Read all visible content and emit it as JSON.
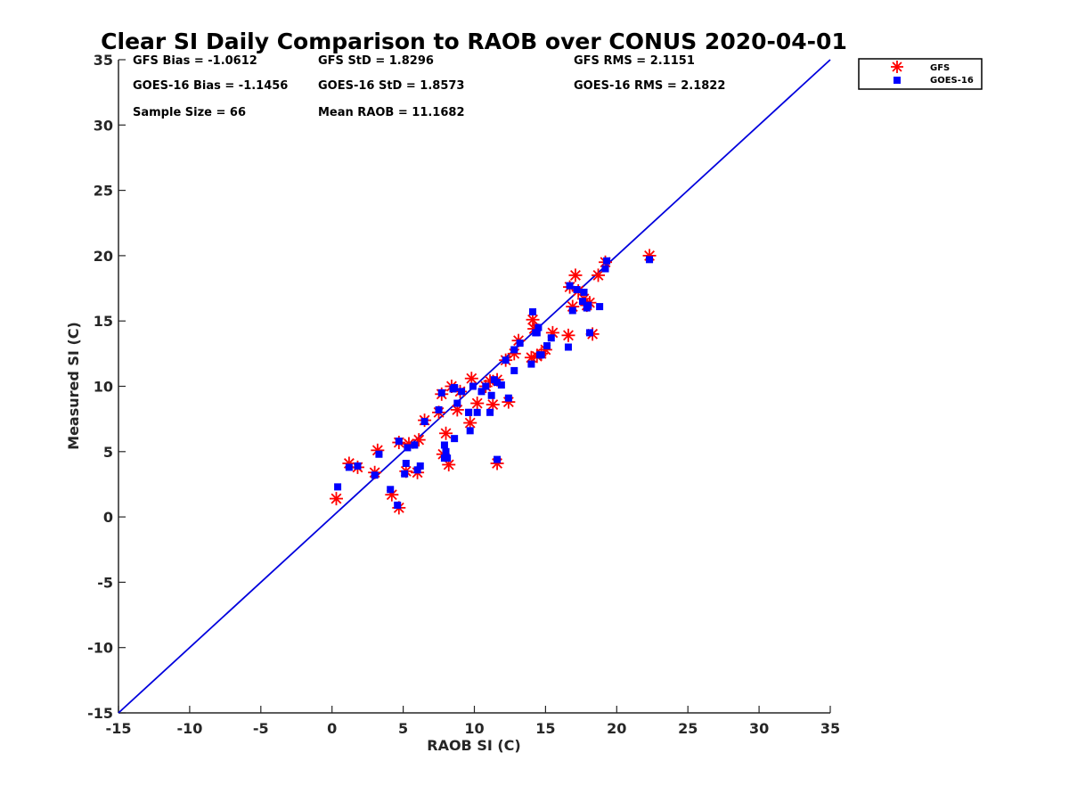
{
  "chart_data": {
    "type": "scatter",
    "title": "Clear SI Daily Comparison to RAOB over CONUS 2020-04-01",
    "xlabel": "RAOB SI (C)",
    "ylabel": "Measured SI (C)",
    "xlim": [
      -15,
      35
    ],
    "ylim": [
      -15,
      35
    ],
    "xticks": [
      "-15",
      "-10",
      "-5",
      "0",
      "5",
      "10",
      "15",
      "20",
      "25",
      "30",
      "35"
    ],
    "yticks": [
      "-15",
      "-10",
      "-5",
      "0",
      "5",
      "10",
      "15",
      "20",
      "25",
      "30",
      "35"
    ],
    "grid": false,
    "legend_position": "top-right, outside plot",
    "reference_line": {
      "from": [
        -15,
        -15
      ],
      "to": [
        35,
        35
      ],
      "color": "#0000dd"
    },
    "stats": {
      "gfs_bias": "GFS Bias = -1.0612",
      "gfs_std": "GFS StD = 1.8296",
      "gfs_rms": "GFS RMS = 2.1151",
      "goes_bias": "GOES-16 Bias = -1.1456",
      "goes_std": "GOES-16 StD = 1.8573",
      "goes_rms": "GOES-16 RMS = 2.1822",
      "sample_size": "Sample Size = 66",
      "mean_raob": "Mean RAOB = 11.1682"
    },
    "series": [
      {
        "name": "GFS",
        "marker": "asterisk",
        "color": "#ff0000",
        "x": [
          0.3,
          1.2,
          1.8,
          3.0,
          3.2,
          4.2,
          4.7,
          4.7,
          5.2,
          5.4,
          6.0,
          6.1,
          6.5,
          7.5,
          7.7,
          7.8,
          8.0,
          8.2,
          8.4,
          8.8,
          9.0,
          9.7,
          9.8,
          10.2,
          10.8,
          11.3,
          11.1,
          11.6,
          11.6,
          12.2,
          12.4,
          12.8,
          13.1,
          14.0,
          14.1,
          14.2,
          14.4,
          14.7,
          15.0,
          15.5,
          16.6,
          16.7,
          16.9,
          17.1,
          17.3,
          17.7,
          17.9,
          18.1,
          18.3,
          18.7,
          19.2,
          22.3
        ],
        "y": [
          1.4,
          4.1,
          3.8,
          3.4,
          5.1,
          1.7,
          0.7,
          5.7,
          3.5,
          5.6,
          3.4,
          5.9,
          7.4,
          8.0,
          9.4,
          4.8,
          6.4,
          4.0,
          10.0,
          8.2,
          9.6,
          7.2,
          10.6,
          8.7,
          10.0,
          8.6,
          10.4,
          10.5,
          4.1,
          12.0,
          8.8,
          12.5,
          13.5,
          12.2,
          15.1,
          14.4,
          12.3,
          12.5,
          12.8,
          14.1,
          13.9,
          17.6,
          16.1,
          18.5,
          17.3,
          16.7,
          16.2,
          16.4,
          14.0,
          18.5,
          19.5,
          20.0
        ]
      },
      {
        "name": "GOES-16",
        "marker": "square",
        "color": "#0000ff",
        "x": [
          0.4,
          1.2,
          1.8,
          3.0,
          3.3,
          4.1,
          4.6,
          4.7,
          5.1,
          5.2,
          5.3,
          5.8,
          6.0,
          6.2,
          6.5,
          7.5,
          7.7,
          7.9,
          7.9,
          8.1,
          8.6,
          8.6,
          8.8,
          9.1,
          9.6,
          9.7,
          9.9,
          10.2,
          10.5,
          11.1,
          11.2,
          11.4,
          11.6,
          11.9,
          12.2,
          12.4,
          12.8,
          13.2,
          14.0,
          14.1,
          14.4,
          14.5,
          14.7,
          15.1,
          15.4,
          16.6,
          16.7,
          16.9,
          17.2,
          17.6,
          17.9,
          18.1,
          18.8,
          19.2,
          19.3,
          22.3,
          14.3,
          12.8,
          11.6,
          9.6,
          8.0,
          17.7,
          18.0,
          14.6,
          10.8,
          8.5
        ],
        "y": [
          2.3,
          3.8,
          3.9,
          3.2,
          4.8,
          2.1,
          0.9,
          5.8,
          3.3,
          4.1,
          5.3,
          5.5,
          3.6,
          3.9,
          7.3,
          8.2,
          9.5,
          4.5,
          5.5,
          4.5,
          6.0,
          9.9,
          8.7,
          9.6,
          8.0,
          6.6,
          10.0,
          8.0,
          9.6,
          8.0,
          9.3,
          10.5,
          4.4,
          10.1,
          12.0,
          9.1,
          12.8,
          13.3,
          11.7,
          15.7,
          14.1,
          14.5,
          12.4,
          13.1,
          13.7,
          13.0,
          17.7,
          15.8,
          17.4,
          16.5,
          16.0,
          14.1,
          16.1,
          19.0,
          19.6,
          19.7,
          14.1,
          11.2,
          10.3,
          8.0,
          5.0,
          17.2,
          16.2,
          12.4,
          10.0,
          9.8
        ]
      }
    ]
  }
}
